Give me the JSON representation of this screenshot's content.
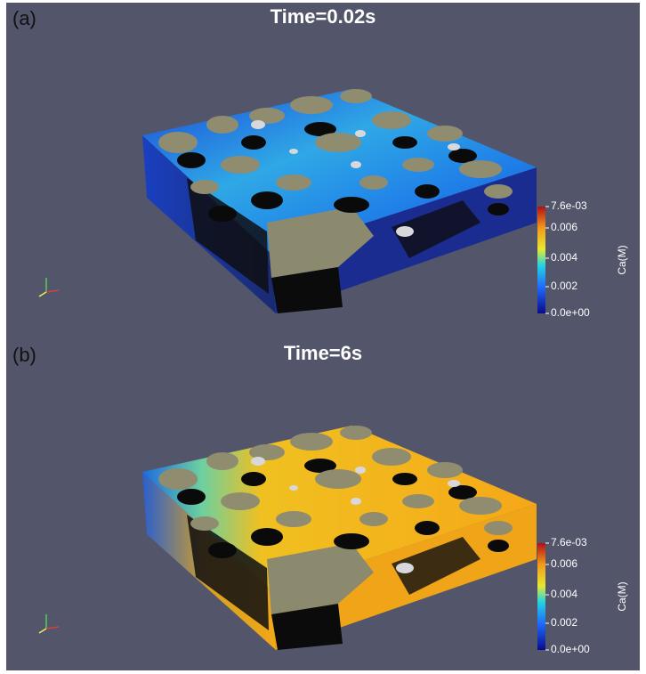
{
  "panels": [
    {
      "label": "(a)",
      "title": "Time=0.02s",
      "colorbar": {
        "title": "Ca(M)",
        "labels": [
          "7.6e-03",
          "0.006",
          "0.004",
          "0.002",
          "0.0e+00"
        ]
      }
    },
    {
      "label": "(b)",
      "title": "Time=6s",
      "colorbar": {
        "title": "Ca(M)",
        "labels": [
          "7.6e-03",
          "0.006",
          "0.004",
          "0.002",
          "0.0e+00"
        ]
      }
    }
  ]
}
